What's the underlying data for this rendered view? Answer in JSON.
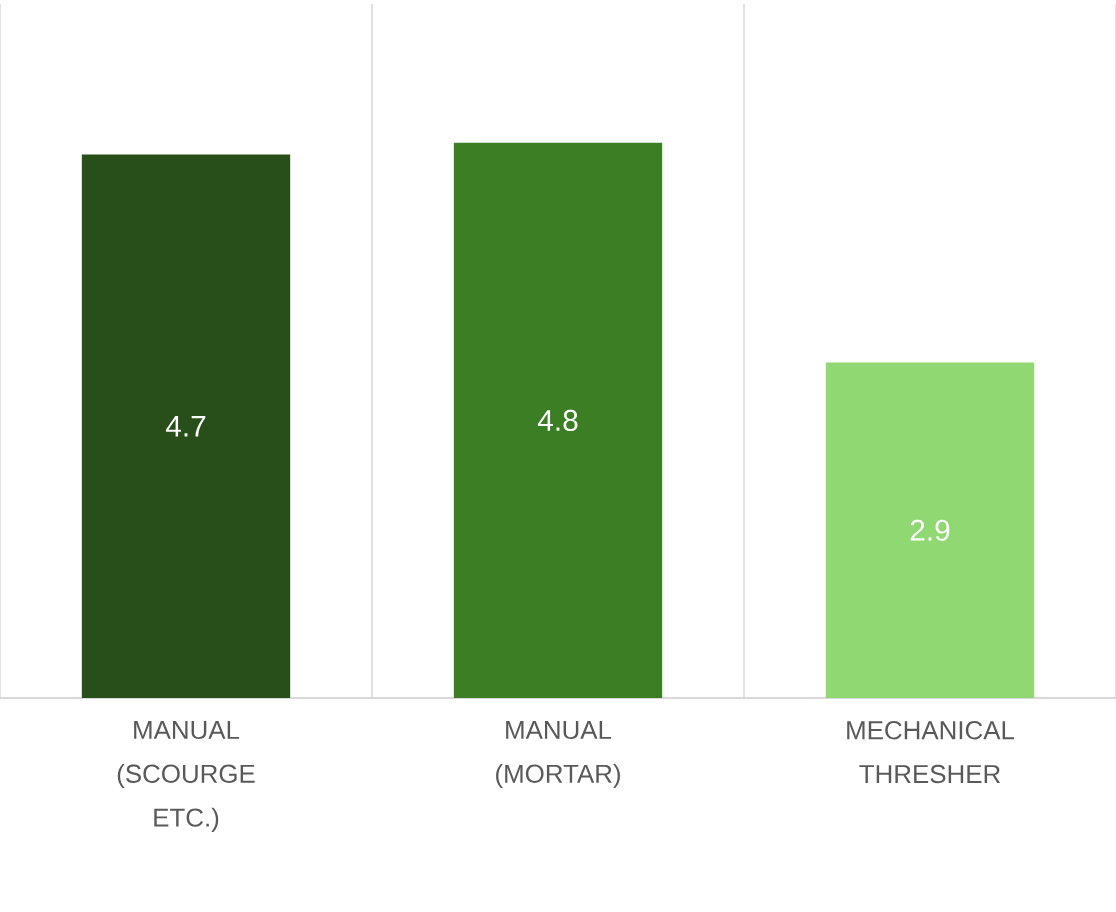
{
  "chart_data": {
    "type": "bar",
    "categories": [
      "MANUAL (SCOURGE ETC.)",
      "MANUAL (MORTAR)",
      "MECHANICAL THRESHER"
    ],
    "values": [
      4.7,
      4.8,
      2.9
    ],
    "colors": [
      "#284f19",
      "#3c7e24",
      "#90d872"
    ],
    "ylim": [
      0,
      6
    ],
    "data_labels": true,
    "grid": "x"
  }
}
